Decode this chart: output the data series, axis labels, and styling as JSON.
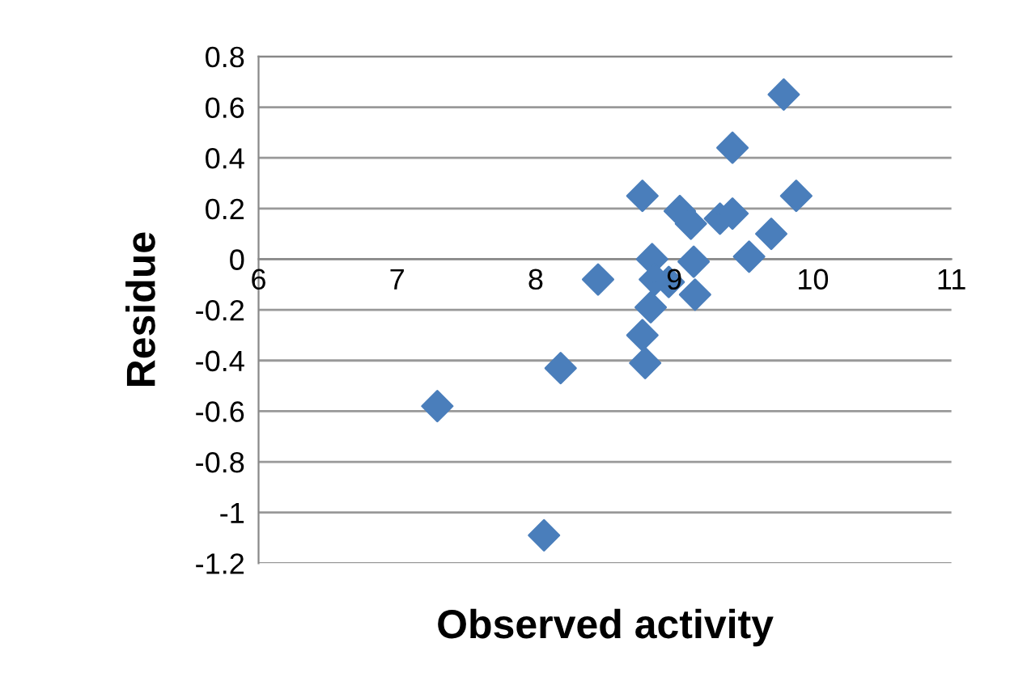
{
  "chart_data": {
    "type": "scatter",
    "xlabel": "Observed activity",
    "ylabel": "Residue",
    "series": [
      {
        "color": "#4a7ebb",
        "x": [
          7.29,
          8.06,
          8.18,
          8.45,
          8.77,
          8.77,
          8.79,
          8.84,
          8.83,
          8.86,
          8.96,
          9.04,
          9.12,
          9.14,
          9.15,
          9.33,
          9.42,
          9.42,
          9.54,
          9.7,
          9.79,
          9.88
        ],
        "values": [
          -0.58,
          -1.09,
          -0.43,
          -0.08,
          0.25,
          -0.3,
          -0.41,
          0.0,
          -0.19,
          -0.08,
          -0.09,
          0.19,
          0.14,
          -0.01,
          -0.14,
          0.16,
          0.18,
          0.44,
          0.01,
          0.1,
          0.65,
          0.25
        ]
      }
    ],
    "marker": "diamond",
    "xlim": [
      6,
      11
    ],
    "xticks": [
      6,
      7,
      8,
      9,
      10,
      11
    ],
    "ylim": [
      -1.2,
      0.8
    ],
    "yticks": [
      -1.2,
      -1,
      -0.8,
      -0.6,
      -0.4,
      -0.2,
      0,
      0.2,
      0.4,
      0.6,
      0.8
    ],
    "grid": "y",
    "legend": false
  }
}
